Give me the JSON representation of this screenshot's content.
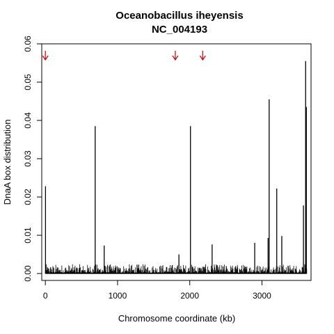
{
  "chart_data": {
    "type": "bar",
    "title": "Oceanobacillus iheyensis",
    "subtitle": "NC_004193",
    "xlabel": "Chromosome coordinate (kb)",
    "ylabel": "DnaA box distribution",
    "xlim": [
      -50,
      3680
    ],
    "ylim": [
      -0.0018,
      0.06
    ],
    "xticks": [
      0,
      1000,
      2000,
      3000
    ],
    "xtick_labels": [
      "0",
      "1000",
      "2000",
      "3000"
    ],
    "yticks": [
      0.0,
      0.01,
      0.02,
      0.03,
      0.04,
      0.05,
      0.06
    ],
    "ytick_labels": [
      "0.00",
      "0.01",
      "0.02",
      "0.03",
      "0.04",
      "0.05",
      "0.06"
    ],
    "grid": false,
    "peaks": [
      {
        "x": 2,
        "y": 0.0228
      },
      {
        "x": 690,
        "y": 0.0385
      },
      {
        "x": 815,
        "y": 0.0073
      },
      {
        "x": 1850,
        "y": 0.005
      },
      {
        "x": 2010,
        "y": 0.0385
      },
      {
        "x": 2310,
        "y": 0.0076
      },
      {
        "x": 2900,
        "y": 0.008
      },
      {
        "x": 3085,
        "y": 0.0093
      },
      {
        "x": 3100,
        "y": 0.0455
      },
      {
        "x": 3205,
        "y": 0.0222
      },
      {
        "x": 3275,
        "y": 0.0098
      },
      {
        "x": 3575,
        "y": 0.0178
      },
      {
        "x": 3605,
        "y": 0.0555
      },
      {
        "x": 3615,
        "y": 0.0435
      }
    ],
    "background_max": 0.0025,
    "arrows_x": [
      0,
      1800,
      2180
    ],
    "arrow_color": "#cc0000",
    "line_color": "#000000"
  }
}
